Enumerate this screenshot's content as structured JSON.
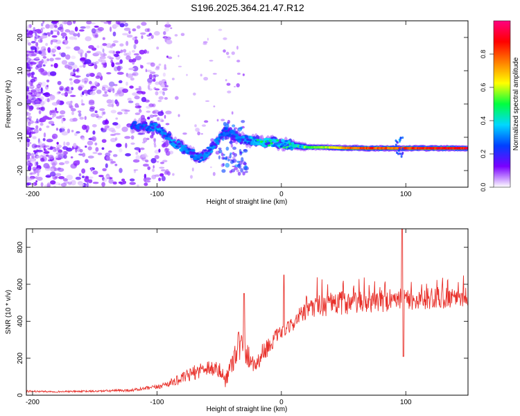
{
  "title": "S196.2025.364.21.47.R12",
  "colors": {
    "snr_line": "#e8302a",
    "background": "#ffffff",
    "axis": "#000000"
  },
  "chart_data": [
    {
      "type": "heatmap",
      "title": "S196.2025.364.21.47.R12",
      "xlabel": "Height of straight line (km)",
      "ylabel": "Frequency (Hz)",
      "xlim": [
        -205,
        150
      ],
      "ylim": [
        -25,
        25
      ],
      "xticks": [
        -200,
        -100,
        0,
        100
      ],
      "yticks": [
        -20,
        -10,
        0,
        10,
        20
      ],
      "colorbar": {
        "label": "Normalized spectral amplitude",
        "range": [
          0.0,
          1.0
        ],
        "ticks": [
          "0.0",
          "0.2",
          "0.4",
          "0.6",
          "0.8"
        ],
        "tick_values": [
          0.0,
          0.2,
          0.4,
          0.6,
          0.8
        ],
        "colormap": [
          "#ffffff",
          "#7a00ff",
          "#0040ff",
          "#00d8ff",
          "#00ff40",
          "#ffff00",
          "#ff8000",
          "#ff0000",
          "#ff0080"
        ]
      },
      "ridge": [
        {
          "x": -120,
          "f": -6.5,
          "a": 0.25
        },
        {
          "x": -108,
          "f": -6.8,
          "a": 0.3
        },
        {
          "x": -100,
          "f": -7.0,
          "a": 0.35
        },
        {
          "x": -93,
          "f": -9.0,
          "a": 0.3
        },
        {
          "x": -85,
          "f": -12.0,
          "a": 0.35
        },
        {
          "x": -75,
          "f": -14.0,
          "a": 0.3
        },
        {
          "x": -65,
          "f": -16.5,
          "a": 0.3
        },
        {
          "x": -58,
          "f": -14.0,
          "a": 0.35
        },
        {
          "x": -45,
          "f": -8.0,
          "a": 0.28
        },
        {
          "x": -35,
          "f": -10.0,
          "a": 0.3
        },
        {
          "x": -25,
          "f": -11.0,
          "a": 0.35
        },
        {
          "x": -15,
          "f": -11.5,
          "a": 0.5
        },
        {
          "x": 0,
          "f": -11.8,
          "a": 0.45
        },
        {
          "x": 10,
          "f": -12.5,
          "a": 0.55
        },
        {
          "x": 20,
          "f": -13.0,
          "a": 0.55
        },
        {
          "x": 35,
          "f": -13.0,
          "a": 0.6
        },
        {
          "x": 50,
          "f": -13.2,
          "a": 0.8
        },
        {
          "x": 70,
          "f": -13.3,
          "a": 0.9
        },
        {
          "x": 90,
          "f": -13.3,
          "a": 0.85
        },
        {
          "x": 110,
          "f": -13.3,
          "a": 0.92
        },
        {
          "x": 150,
          "f": -13.3,
          "a": 0.95
        }
      ]
    },
    {
      "type": "line",
      "xlabel": "Height of straight line (km)",
      "ylabel": "SNR (10 * v/v)",
      "xlim": [
        -205,
        150
      ],
      "ylim": [
        0,
        900
      ],
      "xticks": [
        -200,
        -100,
        0,
        100
      ],
      "yticks": [
        0,
        200,
        400,
        600,
        800
      ],
      "series": [
        {
          "name": "SNR",
          "x": [
            -205,
            -180,
            -150,
            -120,
            -100,
            -90,
            -80,
            -70,
            -60,
            -50,
            -45,
            -40,
            -35,
            -30,
            -25,
            -20,
            -15,
            -10,
            -5,
            0,
            5,
            10,
            15,
            20,
            25,
            30,
            40,
            50,
            60,
            70,
            80,
            90,
            100,
            110,
            120,
            130,
            140,
            150
          ],
          "y": [
            20,
            18,
            20,
            25,
            40,
            60,
            80,
            110,
            140,
            120,
            70,
            150,
            250,
            220,
            180,
            150,
            220,
            250,
            300,
            330,
            350,
            380,
            420,
            430,
            460,
            470,
            470,
            480,
            480,
            485,
            490,
            495,
            500,
            500,
            505,
            510,
            515,
            520
          ],
          "amplitude": [
            10,
            8,
            10,
            15,
            25,
            40,
            60,
            80,
            90,
            90,
            80,
            120,
            200,
            140,
            120,
            90,
            100,
            100,
            80,
            70,
            70,
            80,
            90,
            100,
            110,
            120,
            130,
            130,
            120,
            120,
            120,
            110,
            110,
            110,
            120,
            120,
            110,
            110
          ]
        }
      ],
      "annotations": [
        {
          "x": 97,
          "y": 900,
          "label": "spike"
        },
        {
          "x": 98,
          "y": 210,
          "label": "dip"
        },
        {
          "x": 2,
          "y": 650,
          "label": "spike"
        },
        {
          "x": -30,
          "y": 550,
          "label": "spike"
        }
      ]
    }
  ]
}
